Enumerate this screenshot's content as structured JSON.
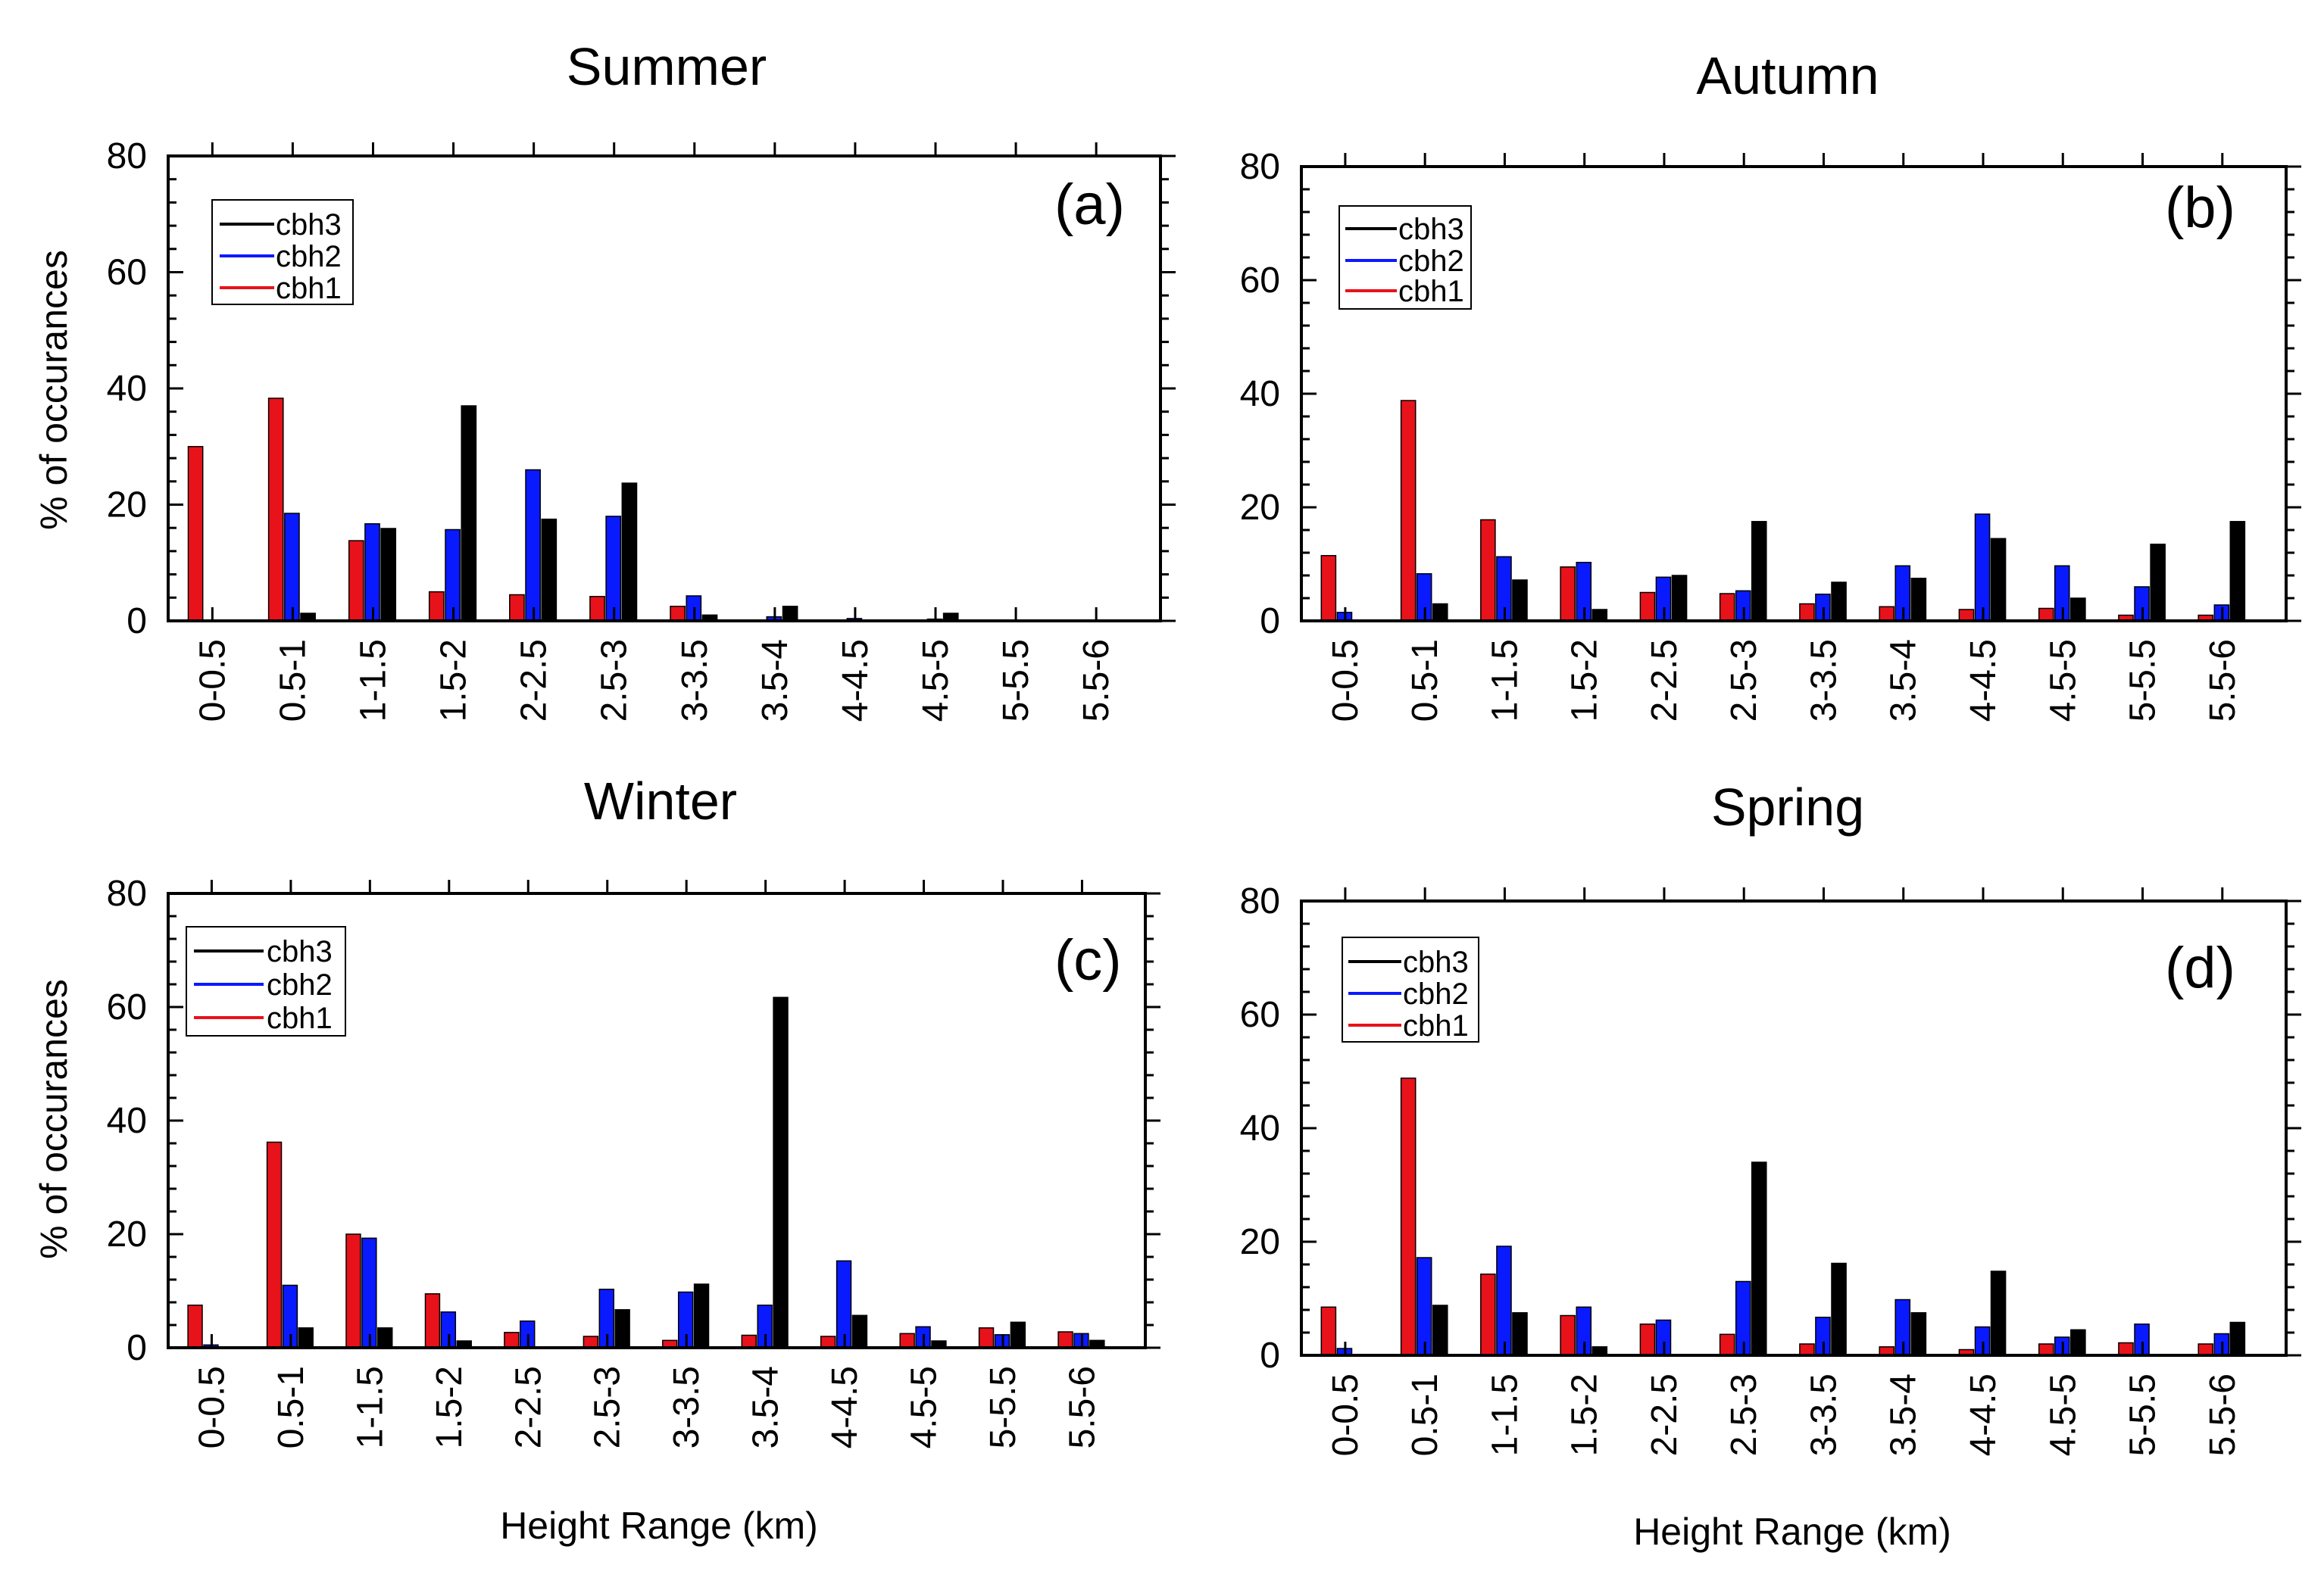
{
  "chart_data": [
    {
      "type": "bar",
      "panel": "(a)",
      "title": "Summer",
      "xlabel": "",
      "ylabel": "% of occurances",
      "ylim": [
        0,
        80
      ],
      "yticks": [
        0,
        20,
        40,
        60,
        80
      ],
      "categories": [
        "0-0.5",
        "0.5-1",
        "1-1.5",
        "1.5-2",
        "2-2.5",
        "2.5-3",
        "3-3.5",
        "3.5-4",
        "4-4.5",
        "4.5-5",
        "5-5.5",
        "5.5-6"
      ],
      "series": [
        {
          "name": "cbh1",
          "color": "#e8121b",
          "values": [
            30,
            38.3,
            13.8,
            5.0,
            4.5,
            4.2,
            2.5,
            0,
            0,
            0,
            0,
            0
          ]
        },
        {
          "name": "cbh2",
          "color": "#0a1aff",
          "values": [
            0,
            18.5,
            16.7,
            15.7,
            26.0,
            18.0,
            4.3,
            0.7,
            0.4,
            0.3,
            0,
            0
          ]
        },
        {
          "name": "cbh3",
          "color": "#000000",
          "values": [
            0,
            1.3,
            15.9,
            37.0,
            17.5,
            23.7,
            1.0,
            2.5,
            0,
            1.3,
            0,
            0
          ]
        }
      ],
      "legend": [
        "cbh3",
        "cbh2",
        "cbh1"
      ]
    },
    {
      "type": "bar",
      "panel": "(b)",
      "title": "Autumn",
      "xlabel": "",
      "ylabel": "",
      "ylim": [
        0,
        80
      ],
      "yticks": [
        0,
        20,
        40,
        60,
        80
      ],
      "categories": [
        "0-0.5",
        "0.5-1",
        "1-1.5",
        "1.5-2",
        "2-2.5",
        "2.5-3",
        "3-3.5",
        "3.5-4",
        "4-4.5",
        "4.5-5",
        "5-5.5",
        "5.5-6"
      ],
      "series": [
        {
          "name": "cbh1",
          "color": "#e8121b",
          "values": [
            11.5,
            38.8,
            17.8,
            9.5,
            5.0,
            4.8,
            3.0,
            2.5,
            2.0,
            2.2,
            1.0,
            1.0
          ]
        },
        {
          "name": "cbh2",
          "color": "#0a1aff",
          "values": [
            1.5,
            8.3,
            11.3,
            10.3,
            7.7,
            5.3,
            4.7,
            9.7,
            18.8,
            9.7,
            6.0,
            2.8
          ]
        },
        {
          "name": "cbh3",
          "color": "#000000",
          "values": [
            0,
            3.0,
            7.2,
            2.0,
            8.0,
            17.5,
            6.8,
            7.5,
            14.5,
            4.0,
            13.5,
            17.5
          ]
        }
      ],
      "legend": [
        "cbh3",
        "cbh2",
        "cbh1"
      ]
    },
    {
      "type": "bar",
      "panel": "(c)",
      "title": "Winter",
      "xlabel": "Height Range (km)",
      "ylabel": "% of occurances",
      "ylim": [
        0,
        80
      ],
      "yticks": [
        0,
        20,
        40,
        60,
        80
      ],
      "categories": [
        "0-0.5",
        "0.5-1",
        "1-1.5",
        "1.5-2",
        "2-2.5",
        "2.5-3",
        "3-3.5",
        "3.5-4",
        "4-4.5",
        "4.5-5",
        "5-5.5",
        "5.5-6"
      ],
      "series": [
        {
          "name": "cbh1",
          "color": "#e8121b",
          "values": [
            7.5,
            36.2,
            20.0,
            9.5,
            2.7,
            2.0,
            1.3,
            2.2,
            2.0,
            2.5,
            3.5,
            2.8
          ]
        },
        {
          "name": "cbh2",
          "color": "#0a1aff",
          "values": [
            0.5,
            11.0,
            19.3,
            6.3,
            4.7,
            10.3,
            9.8,
            7.5,
            15.3,
            3.7,
            2.3,
            2.5
          ]
        },
        {
          "name": "cbh3",
          "color": "#000000",
          "values": [
            0,
            3.5,
            3.5,
            1.2,
            0,
            6.7,
            11.2,
            61.7,
            5.7,
            1.2,
            4.5,
            1.3
          ]
        }
      ],
      "legend": [
        "cbh3",
        "cbh2",
        "cbh1"
      ]
    },
    {
      "type": "bar",
      "panel": "(d)",
      "title": "Spring",
      "xlabel": "Height Range (km)",
      "ylabel": "",
      "ylim": [
        0,
        80
      ],
      "yticks": [
        0,
        20,
        40,
        60,
        80
      ],
      "categories": [
        "0-0.5",
        "0.5-1",
        "1-1.5",
        "1.5-2",
        "2-2.5",
        "2.5-3",
        "3-3.5",
        "3.5-4",
        "4-4.5",
        "4.5-5",
        "5-5.5",
        "5.5-6"
      ],
      "series": [
        {
          "name": "cbh1",
          "color": "#e8121b",
          "values": [
            8.5,
            48.8,
            14.3,
            7.0,
            5.5,
            3.7,
            2.0,
            1.5,
            1.0,
            2.0,
            2.2,
            2.0
          ]
        },
        {
          "name": "cbh2",
          "color": "#0a1aff",
          "values": [
            1.2,
            17.2,
            19.2,
            8.5,
            6.2,
            13.0,
            6.7,
            9.8,
            5.0,
            3.2,
            5.5,
            3.8
          ]
        },
        {
          "name": "cbh3",
          "color": "#000000",
          "values": [
            0,
            8.8,
            7.5,
            1.5,
            0,
            34.0,
            16.2,
            7.5,
            14.8,
            4.5,
            0,
            5.8
          ]
        }
      ],
      "legend": [
        "cbh3",
        "cbh2",
        "cbh1"
      ]
    }
  ]
}
